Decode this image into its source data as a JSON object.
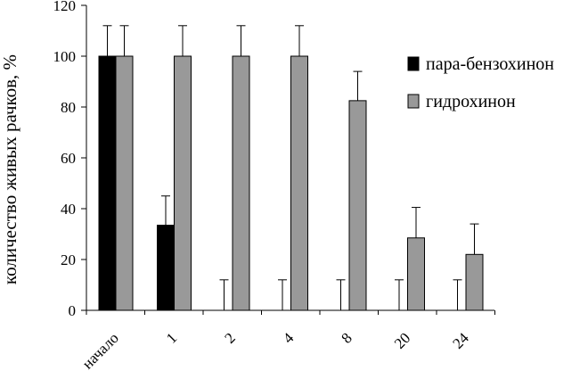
{
  "chart_data": {
    "type": "bar",
    "title": "",
    "xlabel": "",
    "ylabel": "количество живых рачков, %",
    "ylim": [
      0,
      120
    ],
    "yticks": [
      0,
      20,
      40,
      60,
      80,
      100,
      120
    ],
    "categories": [
      "начало",
      "1",
      "2",
      "4",
      "8",
      "20",
      "24"
    ],
    "series": [
      {
        "name": "пара-бензохинон",
        "color": "#000000",
        "values": [
          100,
          33.5,
          0,
          0,
          0,
          0,
          0
        ],
        "error_upper": [
          112,
          45,
          12,
          12,
          12,
          12,
          12
        ]
      },
      {
        "name": "гидрохинон",
        "color": "#999999",
        "values": [
          100,
          100,
          100,
          100,
          82.5,
          28.5,
          22
        ],
        "error_upper": [
          112,
          112,
          112,
          112,
          94,
          40.5,
          34
        ]
      }
    ],
    "grid": false,
    "legend_position": "right",
    "x_tick_rotation": "diagonal"
  }
}
